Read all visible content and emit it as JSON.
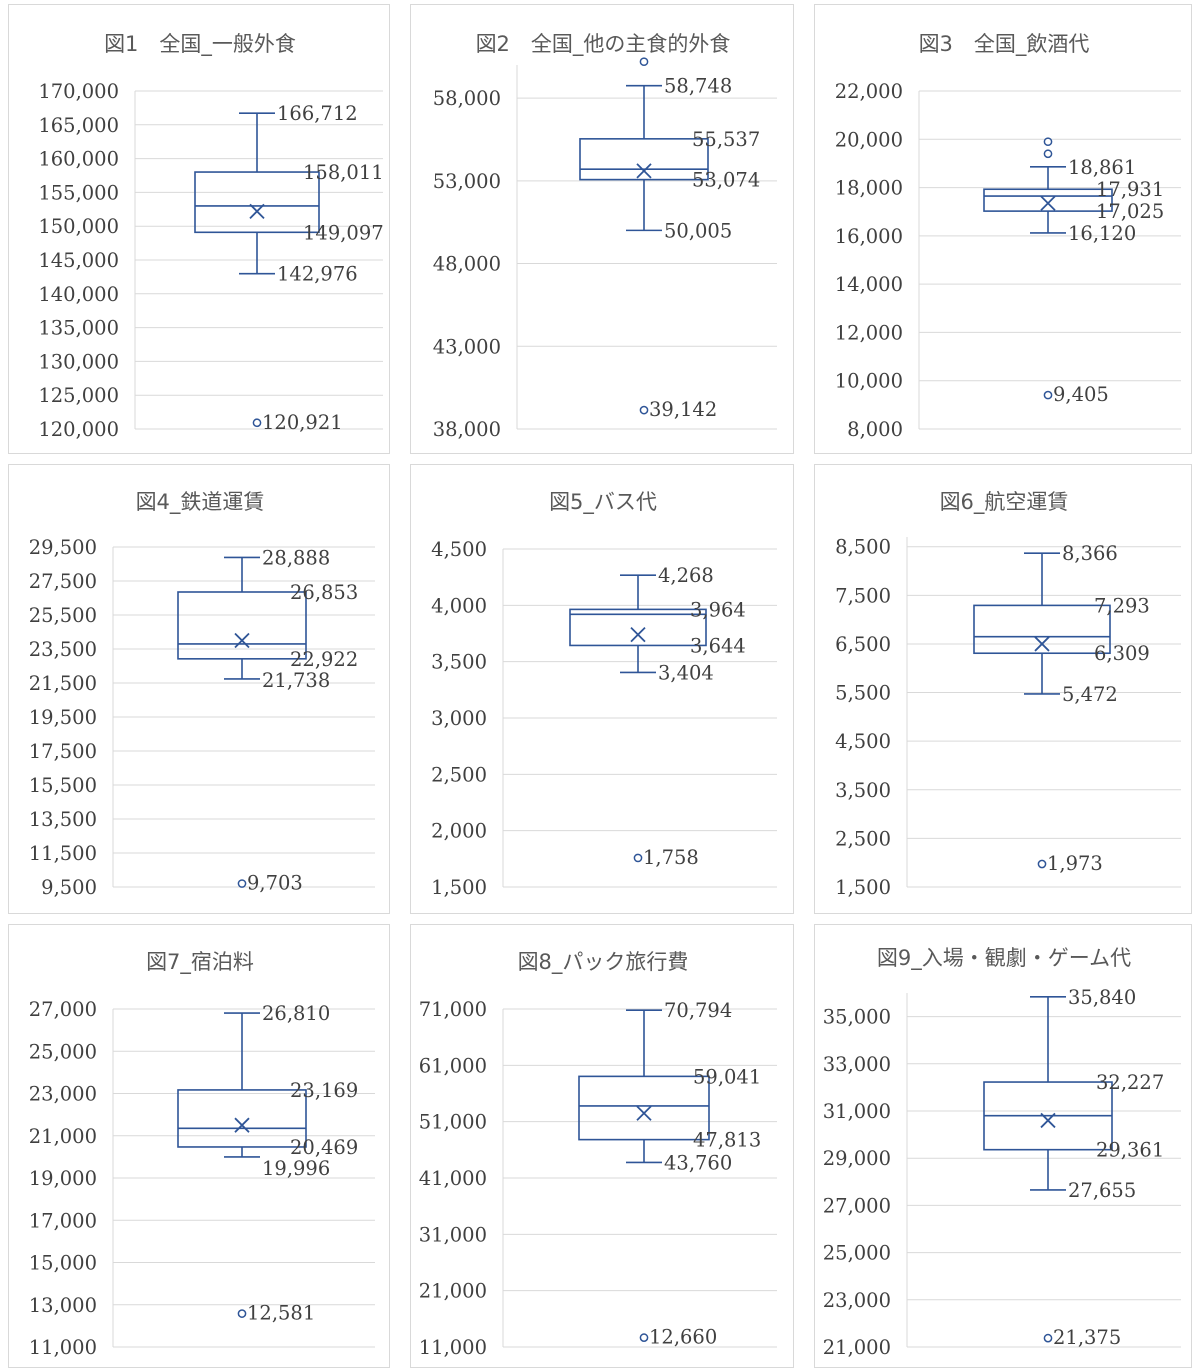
{
  "chart_data": [
    {
      "type": "box",
      "title": "図1　全国_一般外食",
      "ylim": [
        120000,
        170000
      ],
      "yticks": [
        170000,
        165000,
        160000,
        155000,
        150000,
        145000,
        140000,
        135000,
        130000,
        125000,
        120000
      ],
      "tick_labels": [
        "170,000",
        "165,000",
        "160,000",
        "155,000",
        "150,000",
        "145,000",
        "140,000",
        "135,000",
        "130,000",
        "125,000",
        "120,000"
      ],
      "max": 166712,
      "q3": 158011,
      "median": 153000,
      "mean": 152200,
      "q1": 149097,
      "min": 142976,
      "outliers": [
        120921
      ],
      "labels": {
        "max": "166,712",
        "q3": "158,011",
        "q1": "149,097",
        "min": "142,976",
        "outliers": [
          "120,921"
        ]
      }
    },
    {
      "type": "box",
      "title": "図2　全国_他の主食的外食",
      "ylim": [
        38000,
        60000
      ],
      "yticks": [
        58000,
        53000,
        48000,
        43000,
        38000
      ],
      "tick_labels": [
        "58,000",
        "53,000",
        "48,000",
        "43,000",
        "38,000"
      ],
      "max": 58748,
      "q3": 55537,
      "median": 53700,
      "mean": 53600,
      "q1": 53074,
      "min": 50005,
      "outliers": [
        39142,
        60200
      ],
      "labels": {
        "max": "58,748",
        "q3": "55,537",
        "q1": "53,074",
        "min": "50,005",
        "outliers": [
          "39,142",
          ""
        ]
      }
    },
    {
      "type": "box",
      "title": "図3　全国_飲酒代",
      "ylim": [
        8000,
        22000
      ],
      "yticks": [
        22000,
        20000,
        18000,
        16000,
        14000,
        12000,
        10000,
        8000
      ],
      "tick_labels": [
        "22,000",
        "20,000",
        "18,000",
        "16,000",
        "14,000",
        "12,000",
        "10,000",
        "8,000"
      ],
      "max": 18861,
      "q3": 17931,
      "median": 17650,
      "mean": 17350,
      "q1": 17025,
      "min": 16120,
      "outliers": [
        9405,
        19400,
        19900
      ],
      "labels": {
        "max": "18,861",
        "q3": "17,931",
        "q1": "17,025",
        "min": "16,120",
        "outliers": [
          "9,405",
          "",
          ""
        ]
      }
    },
    {
      "type": "box",
      "title": "図4_鉄道運賃",
      "ylim": [
        9500,
        29500
      ],
      "yticks": [
        29500,
        27500,
        25500,
        23500,
        21500,
        19500,
        17500,
        15500,
        13500,
        11500,
        9500
      ],
      "tick_labels": [
        "29,500",
        "27,500",
        "25,500",
        "23,500",
        "21,500",
        "19,500",
        "17,500",
        "15,500",
        "13,500",
        "11,500",
        "9,500"
      ],
      "max": 28888,
      "q3": 26853,
      "median": 23800,
      "mean": 24000,
      "q1": 22922,
      "min": 21738,
      "outliers": [
        9703
      ],
      "labels": {
        "max": "28,888",
        "q3": "26,853",
        "q1": "22,922",
        "min": "21,738",
        "outliers": [
          "9,703"
        ]
      }
    },
    {
      "type": "box",
      "title": "図5_バス代",
      "ylim": [
        1500,
        4500
      ],
      "yticks": [
        4500,
        4000,
        3500,
        3000,
        2500,
        2000,
        1500
      ],
      "tick_labels": [
        "4,500",
        "4,000",
        "3,500",
        "3,000",
        "2,500",
        "2,000",
        "1,500"
      ],
      "max": 4268,
      "q3": 3964,
      "median": 3920,
      "mean": 3740,
      "q1": 3644,
      "min": 3404,
      "outliers": [
        1758
      ],
      "labels": {
        "max": "4,268",
        "q3": "3,964",
        "q1": "3,644",
        "min": "3,404",
        "outliers": [
          "1,758"
        ]
      }
    },
    {
      "type": "box",
      "title": "図6_航空運賃",
      "ylim": [
        1500,
        8700
      ],
      "yticks": [
        8500,
        7500,
        6500,
        5500,
        4500,
        3500,
        2500,
        1500
      ],
      "tick_labels": [
        "8,500",
        "7,500",
        "6,500",
        "5,500",
        "4,500",
        "3,500",
        "2,500",
        "1,500"
      ],
      "max": 8366,
      "q3": 7293,
      "median": 6650,
      "mean": 6500,
      "q1": 6309,
      "min": 5472,
      "outliers": [
        1973
      ],
      "labels": {
        "max": "8,366",
        "q3": "7,293",
        "q1": "6,309",
        "min": "5,472",
        "outliers": [
          "1,973"
        ]
      }
    },
    {
      "type": "box",
      "title": "図7_宿泊料",
      "ylim": [
        11000,
        27000
      ],
      "yticks": [
        27000,
        25000,
        23000,
        21000,
        19000,
        17000,
        15000,
        13000,
        11000
      ],
      "tick_labels": [
        "27,000",
        "25,000",
        "23,000",
        "21,000",
        "19,000",
        "17,000",
        "15,000",
        "13,000",
        "11,000"
      ],
      "max": 26810,
      "q3": 23169,
      "median": 21350,
      "mean": 21500,
      "q1": 20469,
      "min": 19996,
      "outliers": [
        12581
      ],
      "labels": {
        "max": "26,810",
        "q3": "23,169",
        "q1": "20,469",
        "min": "19,996",
        "outliers": [
          "12,581"
        ]
      }
    },
    {
      "type": "box",
      "title": "図8_パック旅行費",
      "ylim": [
        11000,
        71000
      ],
      "yticks": [
        71000,
        61000,
        51000,
        41000,
        31000,
        21000,
        11000
      ],
      "tick_labels": [
        "71,000",
        "61,000",
        "51,000",
        "41,000",
        "31,000",
        "21,000",
        "11,000"
      ],
      "max": 70794,
      "q3": 59041,
      "median": 53800,
      "mean": 52500,
      "q1": 47813,
      "min": 43760,
      "outliers": [
        12660
      ],
      "labels": {
        "max": "70,794",
        "q3": "59,041",
        "q1": "47,813",
        "min": "43,760",
        "outliers": [
          "12,660"
        ]
      }
    },
    {
      "type": "box",
      "title": "図9_入場・観劇・ゲーム代",
      "ylim": [
        21000,
        36000
      ],
      "yticks": [
        35000,
        33000,
        31000,
        29000,
        27000,
        25000,
        23000,
        21000
      ],
      "tick_labels": [
        "35,000",
        "33,000",
        "31,000",
        "29,000",
        "27,000",
        "25,000",
        "23,000",
        "21,000"
      ],
      "max": 35840,
      "q3": 32227,
      "median": 30800,
      "mean": 30600,
      "q1": 29361,
      "min": 27655,
      "outliers": [
        21375
      ],
      "labels": {
        "max": "35,840",
        "q3": "32,227",
        "q1": "29,361",
        "min": "27,655",
        "outliers": [
          "21,375"
        ]
      }
    }
  ]
}
